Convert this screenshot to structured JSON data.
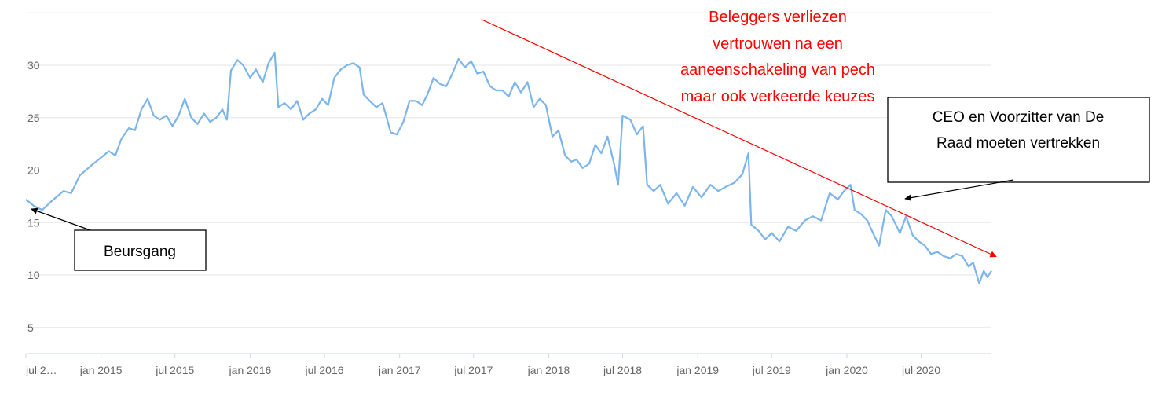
{
  "chart_data": {
    "type": "line",
    "title": "",
    "xlabel": "",
    "ylabel": "",
    "ylim": [
      2.5,
      35
    ],
    "xlim": [
      "2014-07-01",
      "2020-12-20"
    ],
    "grid": true,
    "colors": {
      "series": "#7cb5ec",
      "trend": "#ff0000",
      "grid": "#e6e6e6",
      "axis": "#ccd6eb"
    },
    "y_ticks": [
      {
        "value": 5,
        "label": "5"
      },
      {
        "value": 10,
        "label": "10"
      },
      {
        "value": 15,
        "label": "15"
      },
      {
        "value": 20,
        "label": "20"
      },
      {
        "value": 25,
        "label": "25"
      },
      {
        "value": 30,
        "label": "30"
      }
    ],
    "x_ticks": [
      {
        "date": "2014-07-01",
        "label": "jul 2…"
      },
      {
        "date": "2015-01-01",
        "label": "jan 2015"
      },
      {
        "date": "2015-07-01",
        "label": "jul 2015"
      },
      {
        "date": "2016-01-01",
        "label": "jan 2016"
      },
      {
        "date": "2016-07-01",
        "label": "jul 2016"
      },
      {
        "date": "2017-01-01",
        "label": "jan 2017"
      },
      {
        "date": "2017-07-01",
        "label": "jul 2017"
      },
      {
        "date": "2018-01-01",
        "label": "jan 2018"
      },
      {
        "date": "2018-07-01",
        "label": "jul 2018"
      },
      {
        "date": "2019-01-01",
        "label": "jan 2019"
      },
      {
        "date": "2019-07-01",
        "label": "jul 2019"
      },
      {
        "date": "2020-01-01",
        "label": "jan 2020"
      },
      {
        "date": "2020-07-01",
        "label": "jul 2020"
      }
    ],
    "series": [
      {
        "points": [
          [
            "2014-07-01",
            17.2
          ],
          [
            "2014-07-20",
            16.6
          ],
          [
            "2014-08-10",
            16.2
          ],
          [
            "2014-09-01",
            17.0
          ],
          [
            "2014-10-01",
            18.0
          ],
          [
            "2014-10-20",
            17.8
          ],
          [
            "2014-11-10",
            19.5
          ],
          [
            "2014-12-10",
            20.5
          ],
          [
            "2015-01-01",
            21.2
          ],
          [
            "2015-01-20",
            21.8
          ],
          [
            "2015-02-05",
            21.4
          ],
          [
            "2015-02-20",
            23.0
          ],
          [
            "2015-03-10",
            24.0
          ],
          [
            "2015-03-25",
            23.8
          ],
          [
            "2015-04-10",
            25.8
          ],
          [
            "2015-04-25",
            26.8
          ],
          [
            "2015-05-10",
            25.2
          ],
          [
            "2015-05-25",
            24.8
          ],
          [
            "2015-06-10",
            25.2
          ],
          [
            "2015-06-25",
            24.2
          ],
          [
            "2015-07-10",
            25.2
          ],
          [
            "2015-07-25",
            26.8
          ],
          [
            "2015-08-10",
            25.0
          ],
          [
            "2015-08-25",
            24.4
          ],
          [
            "2015-09-10",
            25.4
          ],
          [
            "2015-09-25",
            24.6
          ],
          [
            "2015-10-10",
            25.0
          ],
          [
            "2015-10-25",
            25.8
          ],
          [
            "2015-11-05",
            24.8
          ],
          [
            "2015-11-15",
            29.5
          ],
          [
            "2015-12-01",
            30.5
          ],
          [
            "2015-12-15",
            30.0
          ],
          [
            "2016-01-01",
            28.8
          ],
          [
            "2016-01-15",
            29.6
          ],
          [
            "2016-02-01",
            28.4
          ],
          [
            "2016-02-15",
            30.2
          ],
          [
            "2016-03-01",
            31.2
          ],
          [
            "2016-03-10",
            26.0
          ],
          [
            "2016-03-25",
            26.4
          ],
          [
            "2016-04-10",
            25.8
          ],
          [
            "2016-04-25",
            26.6
          ],
          [
            "2016-05-10",
            24.8
          ],
          [
            "2016-05-25",
            25.4
          ],
          [
            "2016-06-10",
            25.8
          ],
          [
            "2016-06-25",
            26.8
          ],
          [
            "2016-07-10",
            26.2
          ],
          [
            "2016-07-25",
            28.8
          ],
          [
            "2016-08-10",
            29.6
          ],
          [
            "2016-08-25",
            30.0
          ],
          [
            "2016-09-10",
            30.2
          ],
          [
            "2016-09-25",
            29.8
          ],
          [
            "2016-10-05",
            27.2
          ],
          [
            "2016-10-20",
            26.6
          ],
          [
            "2016-11-05",
            26.0
          ],
          [
            "2016-11-20",
            26.4
          ],
          [
            "2016-12-10",
            23.6
          ],
          [
            "2016-12-25",
            23.4
          ],
          [
            "2017-01-10",
            24.6
          ],
          [
            "2017-01-25",
            26.6
          ],
          [
            "2017-02-10",
            26.6
          ],
          [
            "2017-02-25",
            26.2
          ],
          [
            "2017-03-10",
            27.2
          ],
          [
            "2017-03-25",
            28.8
          ],
          [
            "2017-04-10",
            28.2
          ],
          [
            "2017-04-25",
            28.0
          ],
          [
            "2017-05-10",
            29.2
          ],
          [
            "2017-05-25",
            30.6
          ],
          [
            "2017-06-10",
            29.8
          ],
          [
            "2017-06-25",
            30.4
          ],
          [
            "2017-07-10",
            29.2
          ],
          [
            "2017-07-25",
            29.4
          ],
          [
            "2017-08-10",
            28.0
          ],
          [
            "2017-08-25",
            27.6
          ],
          [
            "2017-09-10",
            27.6
          ],
          [
            "2017-09-25",
            27.0
          ],
          [
            "2017-10-10",
            28.4
          ],
          [
            "2017-10-25",
            27.4
          ],
          [
            "2017-11-10",
            28.4
          ],
          [
            "2017-11-25",
            26.0
          ],
          [
            "2017-12-10",
            26.8
          ],
          [
            "2017-12-25",
            26.2
          ],
          [
            "2018-01-10",
            23.2
          ],
          [
            "2018-01-25",
            23.8
          ],
          [
            "2018-02-10",
            21.4
          ],
          [
            "2018-02-25",
            20.8
          ],
          [
            "2018-03-10",
            21.0
          ],
          [
            "2018-03-25",
            20.2
          ],
          [
            "2018-04-10",
            20.6
          ],
          [
            "2018-04-25",
            22.4
          ],
          [
            "2018-05-10",
            21.6
          ],
          [
            "2018-05-25",
            23.2
          ],
          [
            "2018-06-10",
            20.6
          ],
          [
            "2018-06-20",
            18.6
          ],
          [
            "2018-07-01",
            25.2
          ],
          [
            "2018-07-20",
            24.8
          ],
          [
            "2018-08-05",
            23.4
          ],
          [
            "2018-08-20",
            24.2
          ],
          [
            "2018-08-30",
            18.6
          ],
          [
            "2018-09-15",
            18.0
          ],
          [
            "2018-10-01",
            18.6
          ],
          [
            "2018-10-20",
            16.8
          ],
          [
            "2018-11-10",
            17.8
          ],
          [
            "2018-11-30",
            16.6
          ],
          [
            "2018-12-20",
            18.4
          ],
          [
            "2019-01-10",
            17.4
          ],
          [
            "2019-02-01",
            18.6
          ],
          [
            "2019-02-20",
            18.0
          ],
          [
            "2019-03-10",
            18.4
          ],
          [
            "2019-04-01",
            18.8
          ],
          [
            "2019-04-20",
            19.6
          ],
          [
            "2019-05-05",
            21.6
          ],
          [
            "2019-05-12",
            14.8
          ],
          [
            "2019-05-30",
            14.2
          ],
          [
            "2019-06-15",
            13.4
          ],
          [
            "2019-07-01",
            14.0
          ],
          [
            "2019-07-20",
            13.2
          ],
          [
            "2019-08-10",
            14.6
          ],
          [
            "2019-08-30",
            14.2
          ],
          [
            "2019-09-20",
            15.2
          ],
          [
            "2019-10-10",
            15.6
          ],
          [
            "2019-10-30",
            15.2
          ],
          [
            "2019-11-20",
            17.8
          ],
          [
            "2019-12-10",
            17.2
          ],
          [
            "2019-12-25",
            18.0
          ],
          [
            "2020-01-10",
            18.6
          ],
          [
            "2020-01-20",
            16.2
          ],
          [
            "2020-02-05",
            15.8
          ],
          [
            "2020-02-20",
            15.2
          ],
          [
            "2020-03-05",
            14.0
          ],
          [
            "2020-03-20",
            12.8
          ],
          [
            "2020-04-05",
            16.2
          ],
          [
            "2020-04-20",
            15.6
          ],
          [
            "2020-05-10",
            14.0
          ],
          [
            "2020-05-25",
            15.6
          ],
          [
            "2020-06-10",
            13.8
          ],
          [
            "2020-06-25",
            13.2
          ],
          [
            "2020-07-10",
            12.8
          ],
          [
            "2020-07-25",
            12.0
          ],
          [
            "2020-08-10",
            12.2
          ],
          [
            "2020-08-25",
            11.8
          ],
          [
            "2020-09-10",
            11.6
          ],
          [
            "2020-09-25",
            12.0
          ],
          [
            "2020-10-10",
            11.8
          ],
          [
            "2020-10-25",
            10.8
          ],
          [
            "2020-11-05",
            11.2
          ],
          [
            "2020-11-20",
            9.2
          ],
          [
            "2020-12-01",
            10.4
          ],
          [
            "2020-12-10",
            9.8
          ],
          [
            "2020-12-20",
            10.4
          ]
        ]
      }
    ],
    "trend_line": {
      "from": [
        "2017-07-20",
        31.0
      ],
      "to": [
        "2020-12-20",
        11.9
      ]
    },
    "annotations": {
      "red_text": [
        "Beleggers verliezen",
        "vertrouwen na een",
        "aaneenschakeling van pech",
        "maar ook verkeerde keuzes"
      ],
      "box_ipo": "Beursgang",
      "box_ceo": [
        "CEO en Voorzitter van De",
        "Raad moeten vertrekken"
      ]
    }
  }
}
